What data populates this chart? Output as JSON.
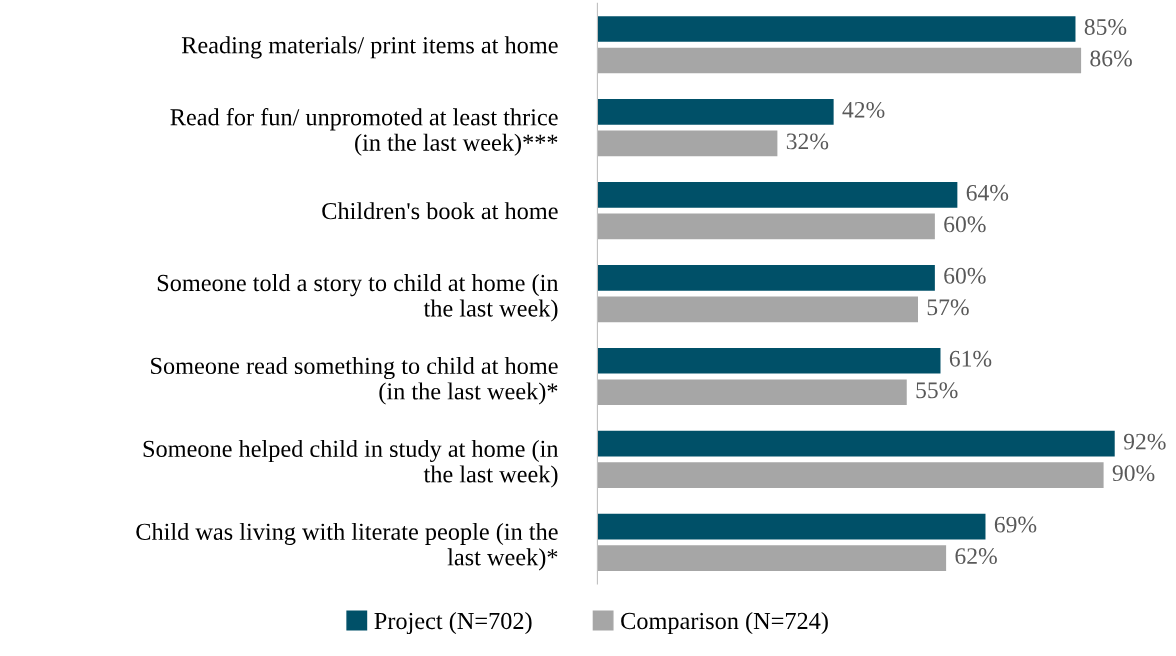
{
  "chart_data": {
    "type": "bar",
    "orientation": "horizontal",
    "categories": [
      "Reading materials/ print items at home",
      "Read for fun/ unpromoted at least thrice\n(in the last week)***",
      "Children's book at home",
      "Someone told a story to child at home (in\nthe last week)",
      "Someone read something to child at home\n(in the last week)*",
      "Someone helped child in study at home (in\nthe last week)",
      "Child was living with literate people (in the\nlast week)*"
    ],
    "series": [
      {
        "name": "Project (N=702)",
        "color": "#005068",
        "values": [
          85,
          42,
          64,
          60,
          61,
          92,
          69
        ],
        "value_labels": [
          "85%",
          "42%",
          "64%",
          "60%",
          "61%",
          "92%",
          "69%"
        ]
      },
      {
        "name": "Comparison (N=724)",
        "color": "#a6a6a6",
        "values": [
          86,
          32,
          60,
          57,
          55,
          90,
          62
        ],
        "value_labels": [
          "86%",
          "32%",
          "60%",
          "57%",
          "55%",
          "90%",
          "62%"
        ]
      }
    ],
    "tick_labels": "y",
    "grid": false,
    "legend": "bottom"
  }
}
